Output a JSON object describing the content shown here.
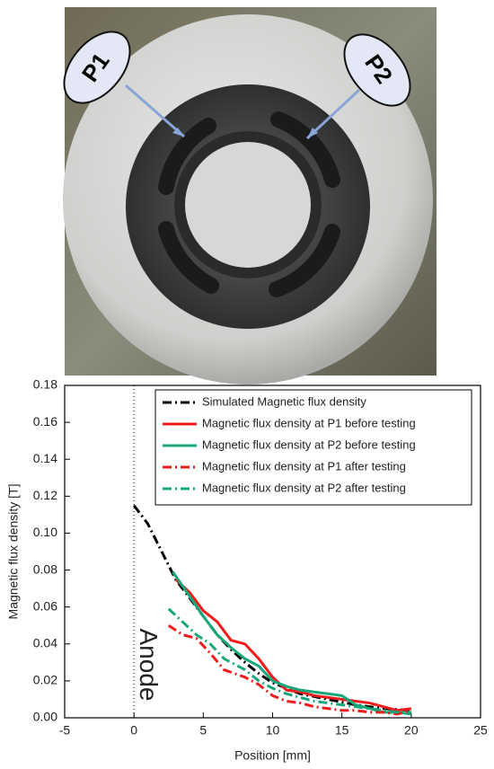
{
  "photo": {
    "labels": [
      "P1",
      "P2"
    ]
  },
  "chart_data": {
    "type": "line",
    "xlabel": "Position [mm]",
    "ylabel": "Magnetic flux density [T]",
    "annotation": "Anode",
    "reference_line_x": 0,
    "xlim": [
      -5,
      25
    ],
    "xticks": [
      -5,
      0,
      5,
      10,
      15,
      20,
      25
    ],
    "ylim": [
      0,
      0.18
    ],
    "yticks": [
      {
        "value": 0,
        "label": "0.00"
      },
      {
        "value": 0.02,
        "label": "0.02"
      },
      {
        "value": 0.04,
        "label": "0.04"
      },
      {
        "value": 0.06,
        "label": "0.06"
      },
      {
        "value": 0.08,
        "label": "0.08"
      },
      {
        "value": 0.1,
        "label": "0.10"
      },
      {
        "value": 0.12,
        "label": "0.12"
      },
      {
        "value": 0.14,
        "label": "0.14"
      },
      {
        "value": 0.16,
        "label": "0.16"
      },
      {
        "value": 0.18,
        "label": "0.18"
      }
    ],
    "legend": "upper right",
    "series": [
      {
        "name": "Simulated Magnetic flux density",
        "color": "#000000",
        "linestyle": "dashdot",
        "x": [
          0,
          1,
          2,
          3,
          4,
          5,
          6,
          7,
          8,
          9,
          10,
          12,
          14,
          16,
          18,
          20
        ],
        "values": [
          0.115,
          0.105,
          0.09,
          0.075,
          0.065,
          0.055,
          0.045,
          0.037,
          0.03,
          0.024,
          0.019,
          0.013,
          0.01,
          0.007,
          0.005,
          0.004
        ]
      },
      {
        "name": "Magnetic flux density at P1 before testing",
        "color": "#ee1c1c",
        "linestyle": "solid",
        "x": [
          3,
          4,
          5,
          6,
          7,
          8,
          9,
          10,
          11,
          12,
          13,
          14,
          15,
          16,
          17,
          18,
          19,
          20
        ],
        "values": [
          0.075,
          0.068,
          0.058,
          0.052,
          0.042,
          0.04,
          0.032,
          0.022,
          0.015,
          0.014,
          0.012,
          0.011,
          0.01,
          0.009,
          0.008,
          0.006,
          0.004,
          0.005
        ]
      },
      {
        "name": "Magnetic flux density at P2 before testing",
        "color": "#17a77a",
        "linestyle": "solid",
        "x": [
          2.8,
          4,
          5,
          6,
          7,
          8,
          9,
          10,
          11,
          12,
          13,
          14,
          15,
          16,
          17,
          18,
          19,
          20
        ],
        "values": [
          0.079,
          0.066,
          0.055,
          0.045,
          0.038,
          0.032,
          0.028,
          0.02,
          0.017,
          0.015,
          0.014,
          0.013,
          0.012,
          0.007,
          0.005,
          0.003,
          0.003,
          0.002
        ]
      },
      {
        "name": "Magnetic flux density at P1 after testing",
        "color": "#ee1c1c",
        "linestyle": "dashdot",
        "x": [
          2.5,
          3.5,
          4.5,
          5.5,
          6.5,
          8,
          9,
          10,
          11,
          12,
          13,
          14,
          15,
          16,
          17,
          18,
          19,
          20
        ],
        "values": [
          0.05,
          0.045,
          0.043,
          0.035,
          0.026,
          0.022,
          0.018,
          0.012,
          0.009,
          0.008,
          0.006,
          0.005,
          0.004,
          0.004,
          0.003,
          0.003,
          0.002,
          0.004
        ]
      },
      {
        "name": "Magnetic flux density at P2 after testing",
        "color": "#17a77a",
        "linestyle": "dashdot",
        "x": [
          2.5,
          3.5,
          4.5,
          5.5,
          6.5,
          8,
          9,
          10,
          11,
          12,
          13,
          14,
          15,
          16,
          17,
          18,
          19,
          20
        ],
        "values": [
          0.059,
          0.052,
          0.045,
          0.04,
          0.032,
          0.026,
          0.02,
          0.016,
          0.013,
          0.011,
          0.009,
          0.008,
          0.007,
          0.006,
          0.005,
          0.004,
          0.003,
          0.003
        ]
      }
    ]
  }
}
